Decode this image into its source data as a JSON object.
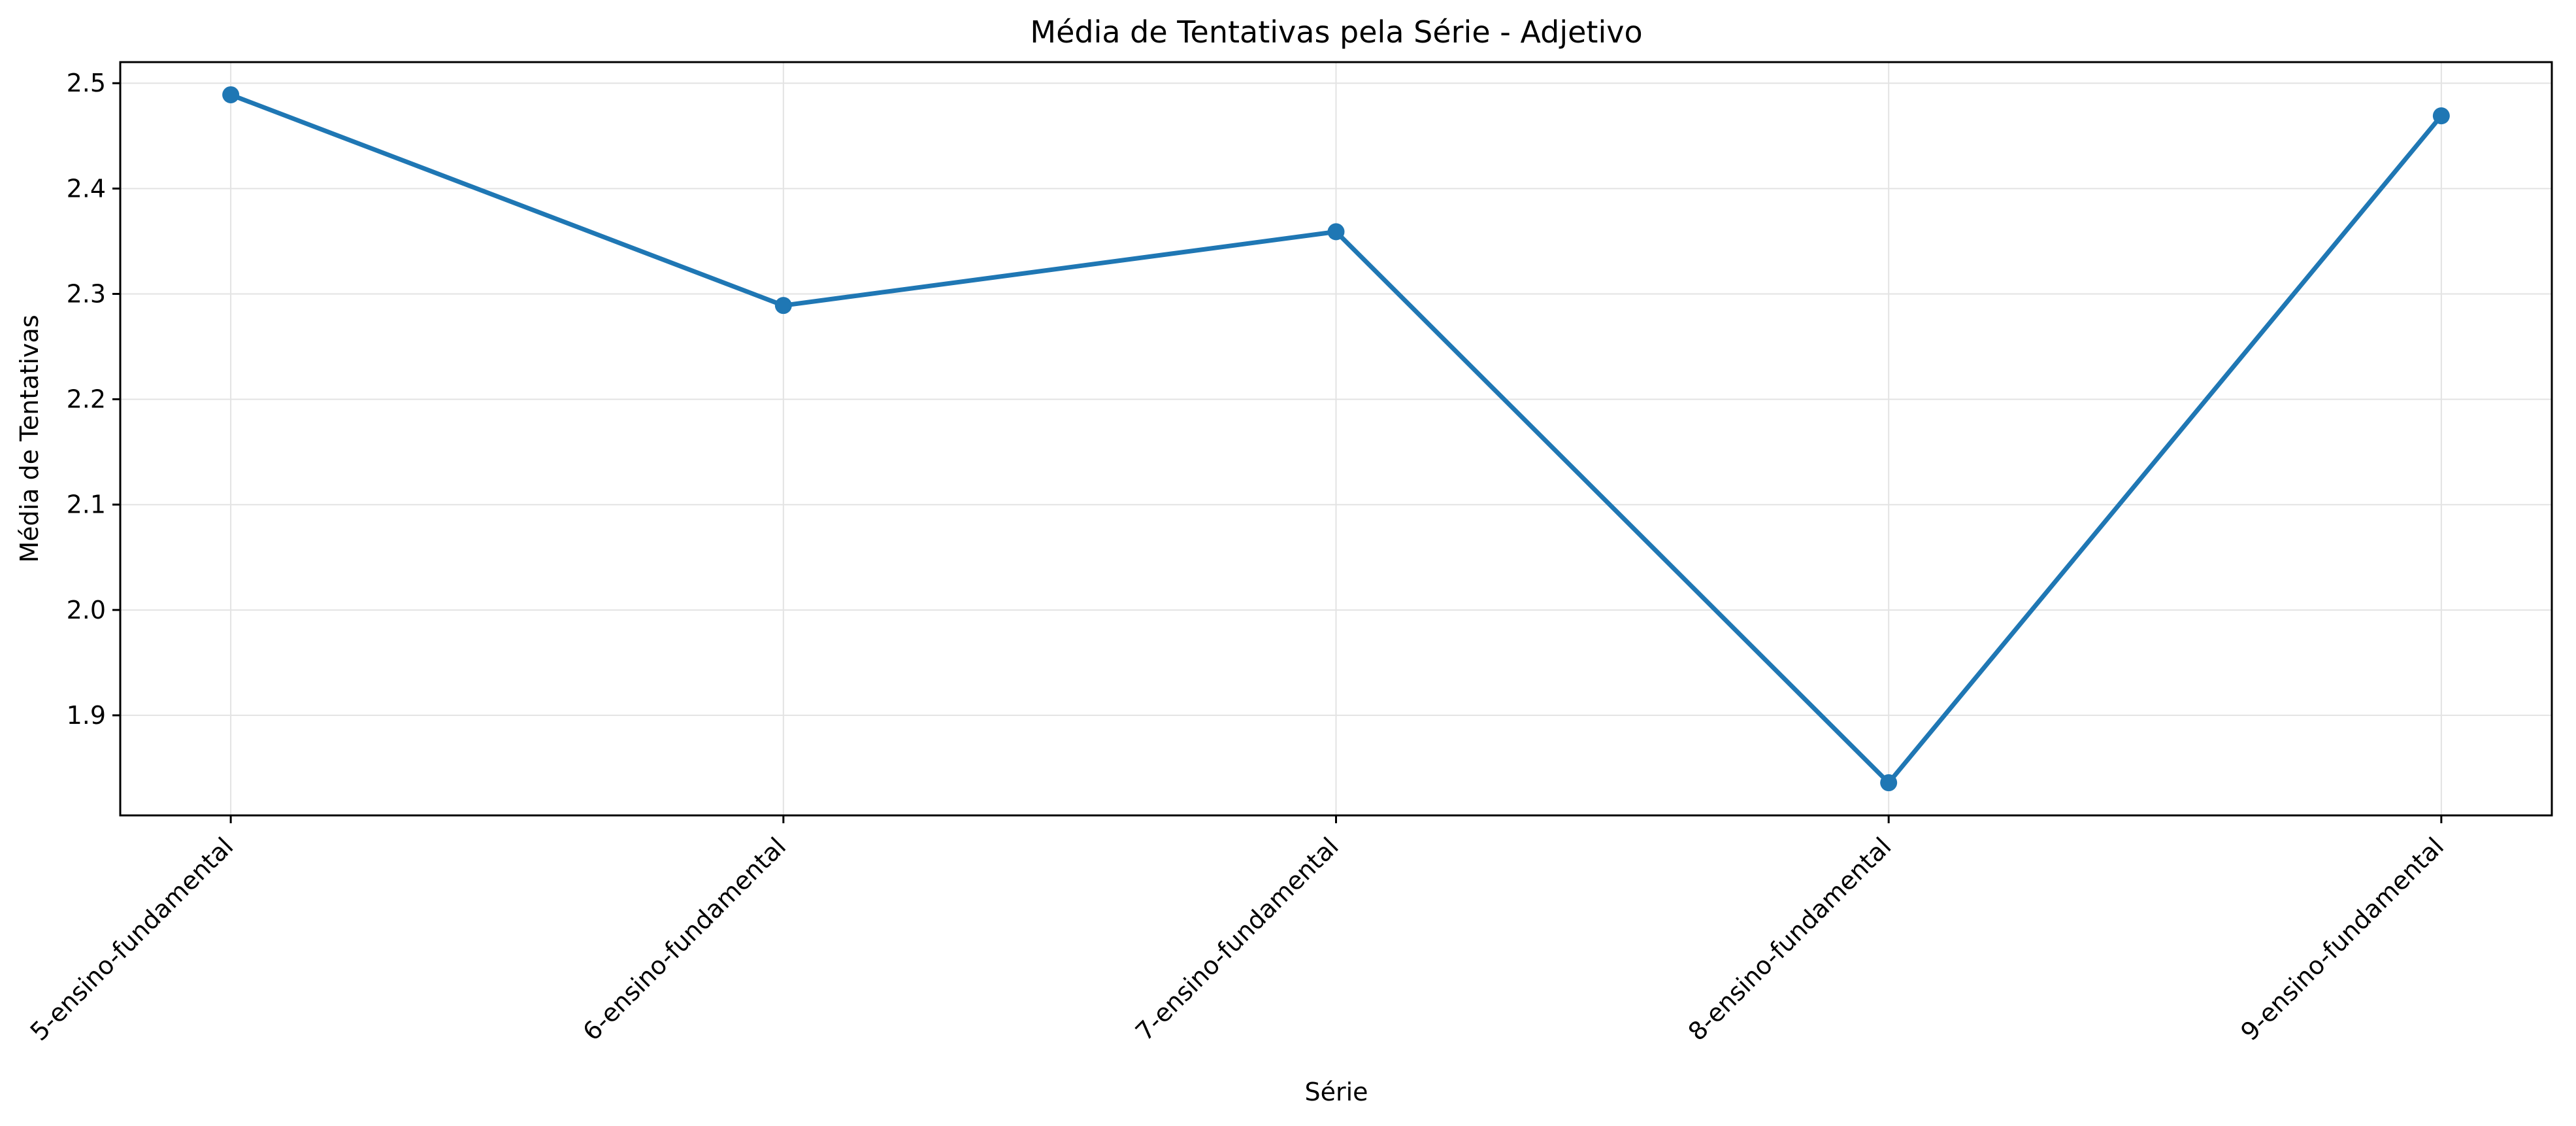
{
  "chart_data": {
    "type": "line",
    "title": "Média de Tentativas pela Série - Adjetivo",
    "xlabel": "Série",
    "ylabel": "Média de Tentativas",
    "categories": [
      "5-ensino-fundamental",
      "6-ensino-fundamental",
      "7-ensino-fundamental",
      "8-ensino-fundamental",
      "9-ensino-fundamental"
    ],
    "series": [
      {
        "values": [
          2.489,
          2.289,
          2.359,
          1.836,
          2.469
        ],
        "color": "#1f77b4",
        "marker": "circle"
      }
    ],
    "ylim": [
      1.805,
      2.52
    ],
    "yticks": [
      "1.9",
      "2.0",
      "2.1",
      "2.2",
      "2.3",
      "2.4",
      "2.5"
    ],
    "grid": true,
    "legend": "none",
    "xtick_rotation": "45 degrees"
  }
}
